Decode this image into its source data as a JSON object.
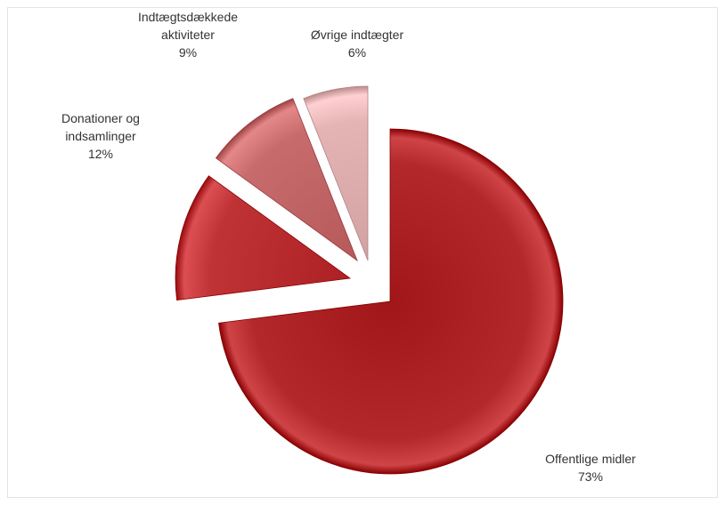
{
  "chart_data": {
    "type": "pie",
    "title": "",
    "legend": "none",
    "slices": [
      {
        "label_lines": [
          "Offentlige midler"
        ],
        "value": 73,
        "value_label": "73%",
        "color": "#b3282b"
      },
      {
        "label_lines": [
          "Donationer og",
          "indsamlinger"
        ],
        "value": 12,
        "value_label": "12%",
        "color": "#bf3336"
      },
      {
        "label_lines": [
          "Indtægtsdækkede",
          "aktiviteter"
        ],
        "value": 9,
        "value_label": "9%",
        "color": "#c86b6d"
      },
      {
        "label_lines": [
          "Øvrige indtægter"
        ],
        "value": 6,
        "value_label": "6%",
        "color": "#e4b4b5"
      }
    ]
  }
}
